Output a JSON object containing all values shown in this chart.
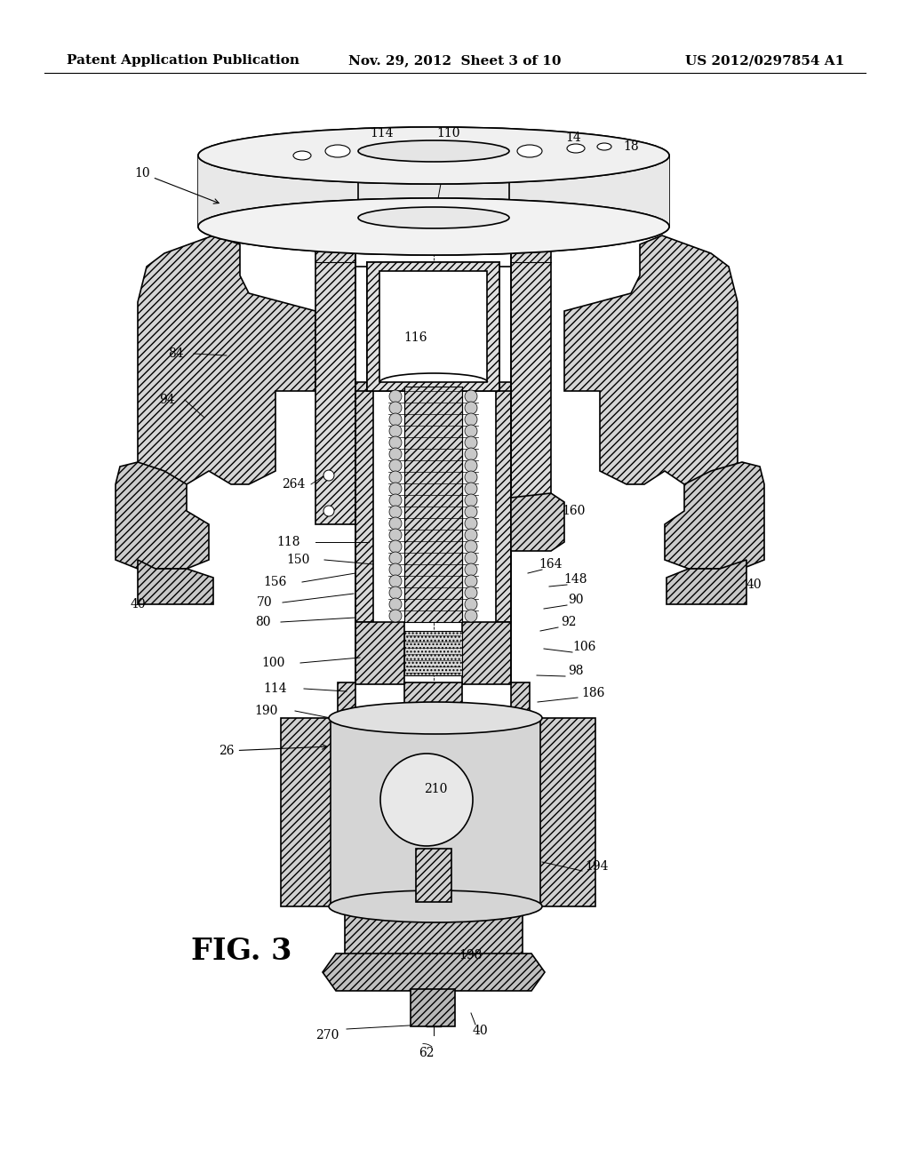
{
  "background_color": "#ffffff",
  "header_left": "Patent Application Publication",
  "header_center": "Nov. 29, 2012  Sheet 3 of 10",
  "header_right": "US 2012/0297854 A1",
  "figure_label": "FIG. 3",
  "header_fontsize": 11,
  "fig_label_fontsize": 24,
  "label_fontsize": 10,
  "line_color": "#000000"
}
